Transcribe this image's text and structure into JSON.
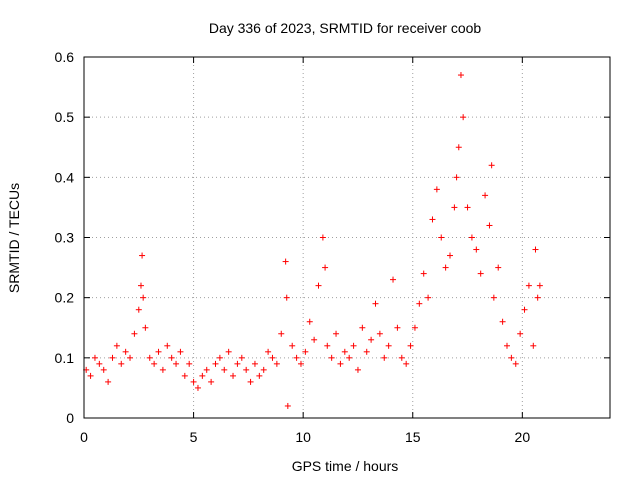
{
  "chart_data": {
    "type": "scatter",
    "title": "Day 336 of 2023, SRMTID for receiver coob",
    "xlabel": "GPS time / hours",
    "ylabel": "SRMTID / TECUs",
    "xlim": [
      0,
      24
    ],
    "ylim": [
      0,
      0.6
    ],
    "xticks": [
      0,
      5,
      10,
      15,
      20
    ],
    "yticks": [
      0,
      0.1,
      0.2,
      0.3,
      0.4,
      0.5,
      0.6
    ],
    "xtick_labels": [
      "0",
      "5",
      "10",
      "15",
      "20"
    ],
    "ytick_labels": [
      "0",
      "0.1",
      "0.2",
      "0.3",
      "0.4",
      "0.5",
      "0.6"
    ],
    "grid": true,
    "marker": "+",
    "series": [
      {
        "name": "SRMTID",
        "color": "#ff0000",
        "x": [
          0.1,
          0.3,
          0.5,
          0.7,
          0.9,
          1.1,
          1.3,
          1.5,
          1.7,
          1.9,
          2.1,
          2.3,
          2.5,
          2.6,
          2.65,
          2.7,
          2.8,
          3.0,
          3.2,
          3.4,
          3.6,
          3.8,
          4.0,
          4.2,
          4.4,
          4.6,
          4.8,
          5.0,
          5.2,
          5.4,
          5.6,
          5.8,
          6.0,
          6.2,
          6.4,
          6.6,
          6.8,
          7.0,
          7.2,
          7.4,
          7.6,
          7.8,
          8.0,
          8.2,
          8.4,
          8.6,
          8.8,
          9.0,
          9.2,
          9.25,
          9.3,
          9.5,
          9.7,
          9.9,
          10.1,
          10.3,
          10.5,
          10.7,
          10.9,
          11.0,
          11.1,
          11.3,
          11.5,
          11.7,
          11.9,
          12.1,
          12.3,
          12.5,
          12.7,
          12.9,
          13.1,
          13.3,
          13.5,
          13.7,
          13.9,
          14.1,
          14.3,
          14.5,
          14.7,
          14.9,
          15.1,
          15.3,
          15.5,
          15.7,
          15.9,
          16.1,
          16.3,
          16.5,
          16.7,
          16.9,
          17.0,
          17.1,
          17.2,
          17.3,
          17.5,
          17.7,
          17.9,
          18.1,
          18.3,
          18.5,
          18.6,
          18.7,
          18.9,
          19.1,
          19.3,
          19.5,
          19.7,
          19.9,
          20.1,
          20.3,
          20.5,
          20.6,
          20.7,
          20.8
        ],
        "y": [
          0.08,
          0.07,
          0.1,
          0.09,
          0.08,
          0.06,
          0.1,
          0.12,
          0.09,
          0.11,
          0.1,
          0.14,
          0.18,
          0.22,
          0.27,
          0.2,
          0.15,
          0.1,
          0.09,
          0.11,
          0.08,
          0.12,
          0.1,
          0.09,
          0.11,
          0.07,
          0.09,
          0.06,
          0.05,
          0.07,
          0.08,
          0.06,
          0.09,
          0.1,
          0.08,
          0.11,
          0.07,
          0.09,
          0.1,
          0.08,
          0.06,
          0.09,
          0.07,
          0.08,
          0.11,
          0.1,
          0.09,
          0.14,
          0.26,
          0.2,
          0.02,
          0.12,
          0.1,
          0.09,
          0.11,
          0.16,
          0.13,
          0.22,
          0.3,
          0.25,
          0.12,
          0.1,
          0.14,
          0.09,
          0.11,
          0.1,
          0.12,
          0.08,
          0.15,
          0.11,
          0.13,
          0.19,
          0.14,
          0.1,
          0.12,
          0.23,
          0.15,
          0.1,
          0.09,
          0.12,
          0.15,
          0.19,
          0.24,
          0.2,
          0.33,
          0.38,
          0.3,
          0.25,
          0.27,
          0.35,
          0.4,
          0.45,
          0.57,
          0.5,
          0.35,
          0.3,
          0.28,
          0.24,
          0.37,
          0.32,
          0.42,
          0.2,
          0.25,
          0.16,
          0.12,
          0.1,
          0.09,
          0.14,
          0.18,
          0.22,
          0.12,
          0.28,
          0.2,
          0.22
        ]
      }
    ]
  },
  "page": {
    "title": "Day 336 of 2023, SRMTID for receiver coob",
    "xlabel": "GPS time / hours",
    "ylabel": "SRMTID / TECUs"
  }
}
